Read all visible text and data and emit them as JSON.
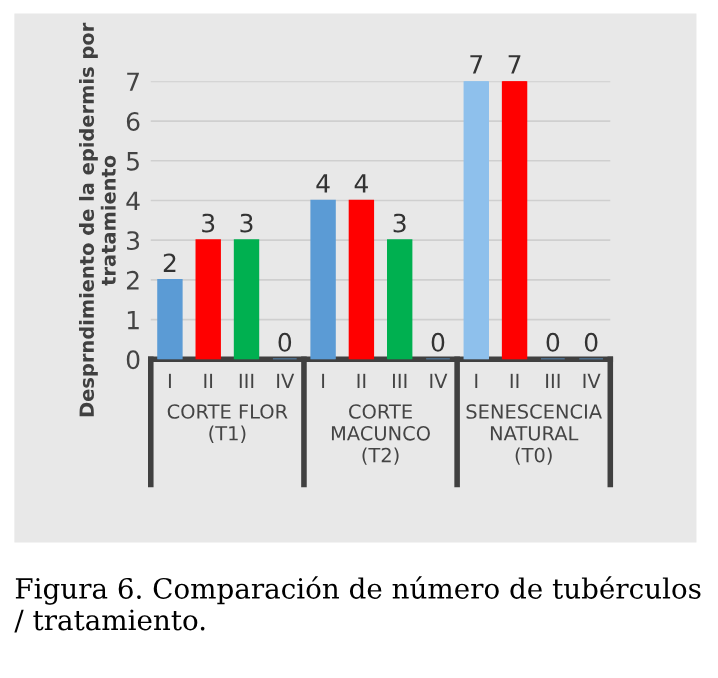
{
  "chart_data": {
    "type": "bar",
    "ylabel": "Desprndimiento de la epidermis por\ntratamiento",
    "categories": [
      "I",
      "II",
      "III",
      "IV",
      "I",
      "II",
      "III",
      "IV",
      "I",
      "II",
      "III",
      "IV"
    ],
    "series": [
      {
        "colors": [
          "#5b9bd5",
          "#ff0000",
          "#00b050",
          "#5b9bd5",
          "#5b9bd5",
          "#ff0000",
          "#00b050",
          "#5b9bd5",
          "#8ec0ec",
          "#ff0000",
          "#5b9bd5",
          "#5b9bd5"
        ],
        "values": [
          2,
          3,
          3,
          0,
          4,
          4,
          3,
          0,
          7,
          7,
          0,
          0
        ]
      }
    ],
    "ylim": [
      0,
      7
    ],
    "yticks": [
      0,
      1,
      2,
      3,
      4,
      5,
      6,
      7
    ],
    "grid": "y",
    "data_labels": true,
    "annotations": [
      "CORTE FLOR\n(T1)",
      "CORTE\nMACUNCO\n(T2)",
      "SENESCENCIA\nNATURAL\n(T0)",
      "Figura 6. Comparación de número de tubérculos / tratamiento."
    ]
  }
}
